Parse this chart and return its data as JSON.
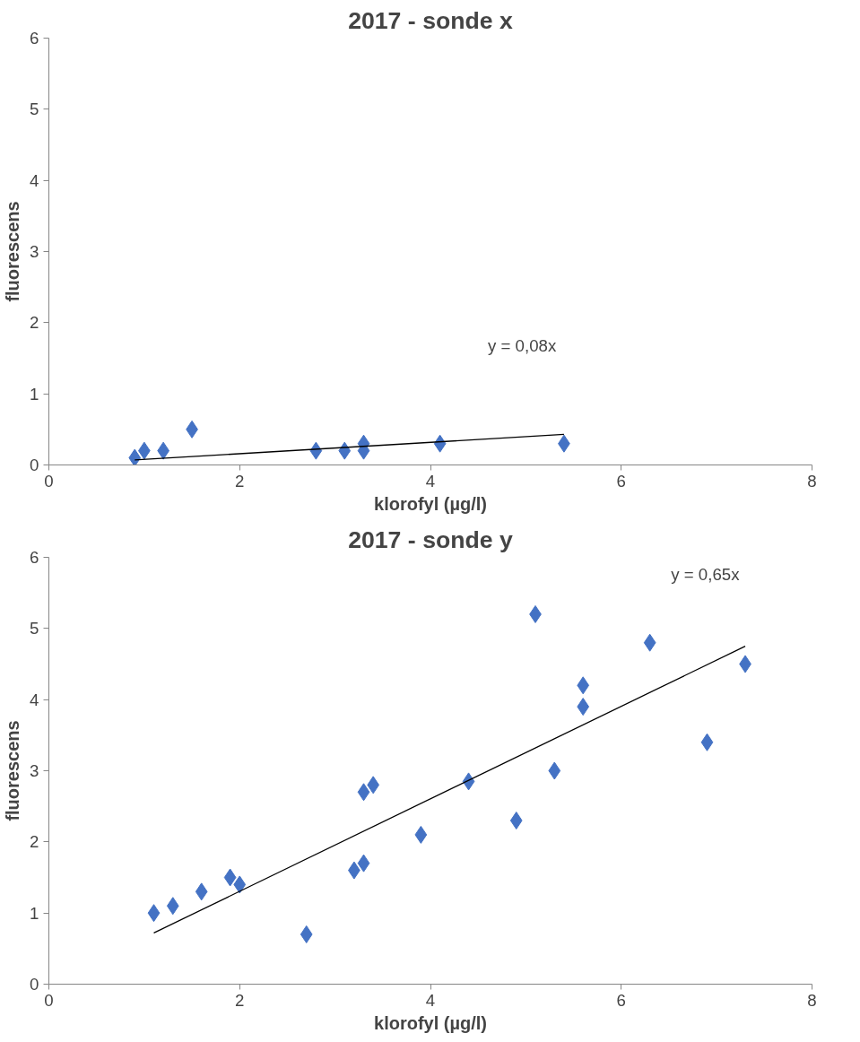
{
  "chart_data": [
    {
      "type": "scatter",
      "title": "2017 - sonde x",
      "xlabel": "klorofyl (µg/l)",
      "ylabel": "fluorescens",
      "xlim": [
        0,
        8
      ],
      "ylim": [
        0,
        6
      ],
      "xticks": [
        0,
        2,
        4,
        6,
        8
      ],
      "yticks": [
        0,
        1,
        2,
        3,
        4,
        5,
        6
      ],
      "grid": false,
      "series": [
        {
          "color": "#4472c4",
          "marker": "diamond",
          "x": [
            0.9,
            1.0,
            1.2,
            1.5,
            2.8,
            3.1,
            3.3,
            3.3,
            4.1,
            5.4
          ],
          "values": [
            0.1,
            0.2,
            0.2,
            0.5,
            0.2,
            0.2,
            0.3,
            0.2,
            0.3,
            0.3
          ]
        },
        {
          "type": "line",
          "color": "#000000",
          "x": [
            0.9,
            5.4
          ],
          "values": [
            0.07,
            0.43
          ]
        }
      ],
      "annotations": [
        "y = 0,08x"
      ]
    },
    {
      "type": "scatter",
      "title": "2017 - sonde y",
      "xlabel": "klorofyl (µg/l)",
      "ylabel": "fluorescens",
      "xlim": [
        0,
        8
      ],
      "ylim": [
        0,
        6
      ],
      "xticks": [
        0,
        2,
        4,
        6,
        8
      ],
      "yticks": [
        0,
        1,
        2,
        3,
        4,
        5,
        6
      ],
      "grid": false,
      "series": [
        {
          "color": "#4472c4",
          "marker": "diamond",
          "x": [
            1.1,
            1.3,
            1.6,
            1.9,
            2.0,
            2.7,
            3.2,
            3.3,
            3.3,
            3.4,
            3.9,
            4.4,
            4.9,
            5.1,
            5.3,
            5.6,
            5.6,
            6.3,
            6.9,
            7.3
          ],
          "values": [
            1.0,
            1.1,
            1.3,
            1.5,
            1.4,
            0.7,
            1.6,
            1.7,
            2.7,
            2.8,
            2.1,
            2.85,
            2.3,
            5.2,
            3.0,
            3.9,
            4.2,
            4.8,
            3.4,
            4.5
          ]
        },
        {
          "type": "line",
          "color": "#000000",
          "x": [
            1.1,
            7.3
          ],
          "values": [
            0.72,
            4.75
          ]
        }
      ],
      "annotations": [
        "y = 0,65x"
      ]
    }
  ]
}
